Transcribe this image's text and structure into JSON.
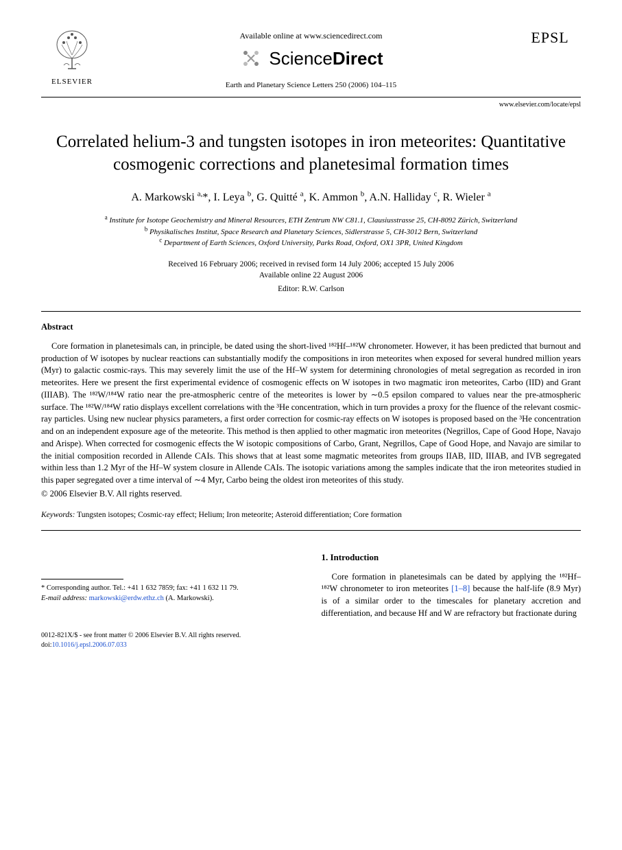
{
  "header": {
    "publisher_name": "ELSEVIER",
    "online_text": "Available online at www.sciencedirect.com",
    "sd_brand_plain": "Science",
    "sd_brand_bold": "Direct",
    "journal_ref": "Earth and Planetary Science Letters 250 (2006) 104–115",
    "epsl_label": "EPSL",
    "epsl_url": "www.elsevier.com/locate/epsl"
  },
  "title": "Correlated helium-3 and tungsten isotopes in iron meteorites: Quantitative cosmogenic corrections and planetesimal formation times",
  "authors_html": "A. Markowski <sup>a,</sup>*, I. Leya <sup>b</sup>, G. Quitté <sup>a</sup>, K. Ammon <sup>b</sup>, A.N. Halliday <sup>c</sup>, R. Wieler <sup>a</sup>",
  "affiliations": {
    "a": "Institute for Isotope Geochemistry and Mineral Resources, ETH Zentrum NW C81.1, Clausiusstrasse 25, CH-8092 Zürich, Switzerland",
    "b": "Physikalisches Institut, Space Research and Planetary Sciences, Sidlerstrasse 5, CH-3012 Bern, Switzerland",
    "c": "Department of Earth Sciences, Oxford University, Parks Road, Oxford, OX1 3PR, United Kingdom"
  },
  "dates": {
    "line1": "Received 16 February 2006; received in revised form 14 July 2006; accepted 15 July 2006",
    "line2": "Available online 22 August 2006"
  },
  "editor": "Editor: R.W. Carlson",
  "abstract": {
    "label": "Abstract",
    "text": "Core formation in planetesimals can, in principle, be dated using the short-lived ¹⁸²Hf–¹⁸²W chronometer. However, it has been predicted that burnout and production of W isotopes by nuclear reactions can substantially modify the compositions in iron meteorites when exposed for several hundred million years (Myr) to galactic cosmic-rays. This may severely limit the use of the Hf–W system for determining chronologies of metal segregation as recorded in iron meteorites. Here we present the first experimental evidence of cosmogenic effects on W isotopes in two magmatic iron meteorites, Carbo (IID) and Grant (IIIAB). The ¹⁸²W/¹⁸⁴W ratio near the pre-atmospheric centre of the meteorites is lower by ∼0.5 epsilon compared to values near the pre-atmospheric surface. The ¹⁸²W/¹⁸⁴W ratio displays excellent correlations with the ³He concentration, which in turn provides a proxy for the fluence of the relevant cosmic-ray particles. Using new nuclear physics parameters, a first order correction for cosmic-ray effects on W isotopes is proposed based on the ³He concentration and on an independent exposure age of the meteorite. This method is then applied to other magmatic iron meteorites (Negrillos, Cape of Good Hope, Navajo and Arispe). When corrected for cosmogenic effects the W isotopic compositions of Carbo, Grant, Negrillos, Cape of Good Hope, and Navajo are similar to the initial composition recorded in Allende CAIs. This shows that at least some magmatic meteorites from groups IIAB, IID, IIIAB, and IVB segregated within less than 1.2 Myr of the Hf–W system closure in Allende CAIs. The isotopic variations among the samples indicate that the iron meteorites studied in this paper segregated over a time interval of ∼4 Myr, Carbo being the oldest iron meteorites of this study.",
    "copyright": "© 2006 Elsevier B.V. All rights reserved."
  },
  "keywords": {
    "label": "Keywords:",
    "text": "Tungsten isotopes; Cosmic-ray effect; Helium; Iron meteorite; Asteroid differentiation; Core formation"
  },
  "introduction": {
    "heading": "1. Introduction",
    "para_pre": "Core formation in planetesimals can be dated by applying the ¹⁸²Hf–¹⁸²W chronometer to iron meteorites ",
    "ref_text": "[1–8]",
    "para_post": " because the half-life (8.9 Myr) is of a similar order to the timescales for planetary accretion and differentiation, and because Hf and W are refractory but fractionate during"
  },
  "footnote": {
    "corr_label": "* Corresponding author. Tel.: +41 1 632 7859; fax: +41 1 632 11 79.",
    "email_label": "E-mail address:",
    "email": "markowski@erdw.ethz.ch",
    "email_author": "(A. Markowski)."
  },
  "footer": {
    "line1": "0012-821X/$ - see front matter © 2006 Elsevier B.V. All rights reserved.",
    "doi_label": "doi:",
    "doi": "10.1016/j.epsl.2006.07.033"
  },
  "colors": {
    "link": "#1a4fcf",
    "text": "#000000",
    "bg": "#ffffff"
  }
}
